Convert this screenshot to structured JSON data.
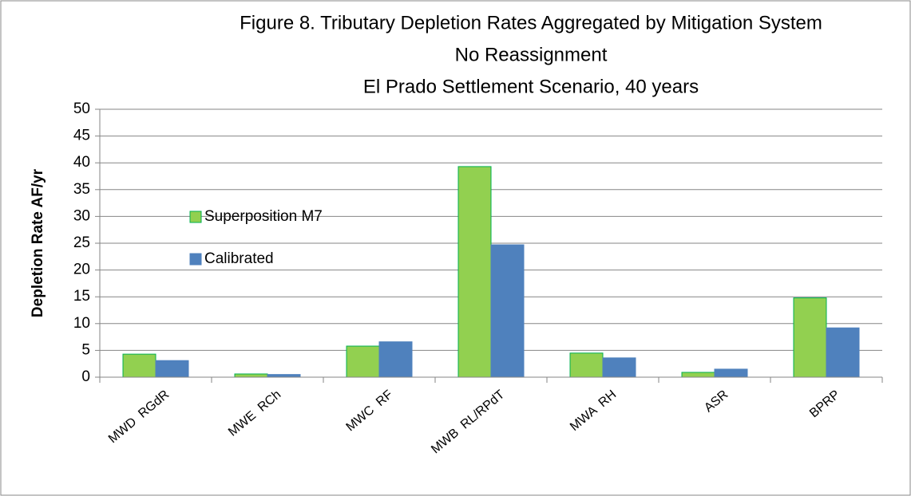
{
  "chart_data": {
    "type": "bar",
    "title": "Figure 8.  Tributary Depletion Rates Aggregated by Mitigation System",
    "subtitle": [
      "No Reassignment",
      "El Prado Settlement Scenario, 40 years"
    ],
    "y_label": "Depletion Rate AF/yr",
    "categories": [
      "MWD  RGdR",
      "MWE  RCh",
      "MWC  RF",
      "MWB  RL/RPdT",
      "MWA  RH",
      "ASR",
      "BPRP"
    ],
    "series": [
      {
        "name": "Superposition M7",
        "color": "#92d050",
        "values": [
          4.3,
          0.6,
          5.8,
          39.3,
          4.5,
          0.9,
          14.8
        ]
      },
      {
        "name": "Calibrated",
        "color": "#4f81bd",
        "values": [
          3.1,
          0.5,
          6.6,
          24.7,
          3.6,
          1.5,
          9.2
        ]
      }
    ],
    "ylim": [
      0,
      50
    ],
    "yticks": [
      0,
      5,
      10,
      15,
      20,
      25,
      30,
      35,
      40,
      45,
      50
    ],
    "grid": true,
    "legend": "left"
  }
}
